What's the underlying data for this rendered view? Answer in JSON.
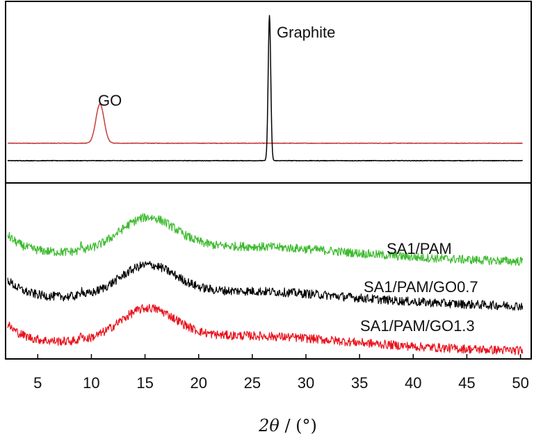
{
  "chart_data": [
    {
      "type": "line",
      "panel": "top",
      "xlim": [
        2,
        51
      ],
      "series": [
        {
          "name": "GO",
          "color": "#c83a3a",
          "baseline_level": 0.12,
          "peaks": [
            {
              "x": 10.8,
              "height": 0.27,
              "width": 0.38
            }
          ]
        },
        {
          "name": "Graphite",
          "color": "#000000",
          "baseline_level": 0.0,
          "peaks": [
            {
              "x": 26.6,
              "height": 1.0,
              "width": 0.12
            }
          ]
        }
      ],
      "annotations": [
        {
          "text": "GO",
          "series": "GO"
        },
        {
          "text": "Graphite",
          "series": "Graphite"
        }
      ]
    },
    {
      "type": "line",
      "panel": "bottom",
      "xlim": [
        2,
        51
      ],
      "xlabel_symbol": "2θ",
      "xlabel_unit": " / (°)",
      "xticks": [
        5,
        10,
        15,
        20,
        25,
        30,
        35,
        40,
        45,
        50
      ],
      "series": [
        {
          "name": "SA1/PAM",
          "color": "#3dbb2f",
          "offset": 0.6,
          "hump_x": 15.2,
          "hump_height": 0.22,
          "small_peak_x": 9.1
        },
        {
          "name": "SA1/PAM/GO0.7",
          "color": "#000000",
          "offset": 0.3,
          "hump_x": 15.2,
          "hump_height": 0.2,
          "small_peak_x": 9.1
        },
        {
          "name": "SA1/PAM/GO1.3",
          "color": "#e8121c",
          "offset": 0.0,
          "hump_x": 15.2,
          "hump_height": 0.21,
          "small_peak_x": 9.1
        }
      ],
      "labels": [
        {
          "text": "SA1/PAM"
        },
        {
          "text": "SA1/PAM/GO0.7"
        },
        {
          "text": "SA1/PAM/GO1.3"
        }
      ]
    }
  ]
}
